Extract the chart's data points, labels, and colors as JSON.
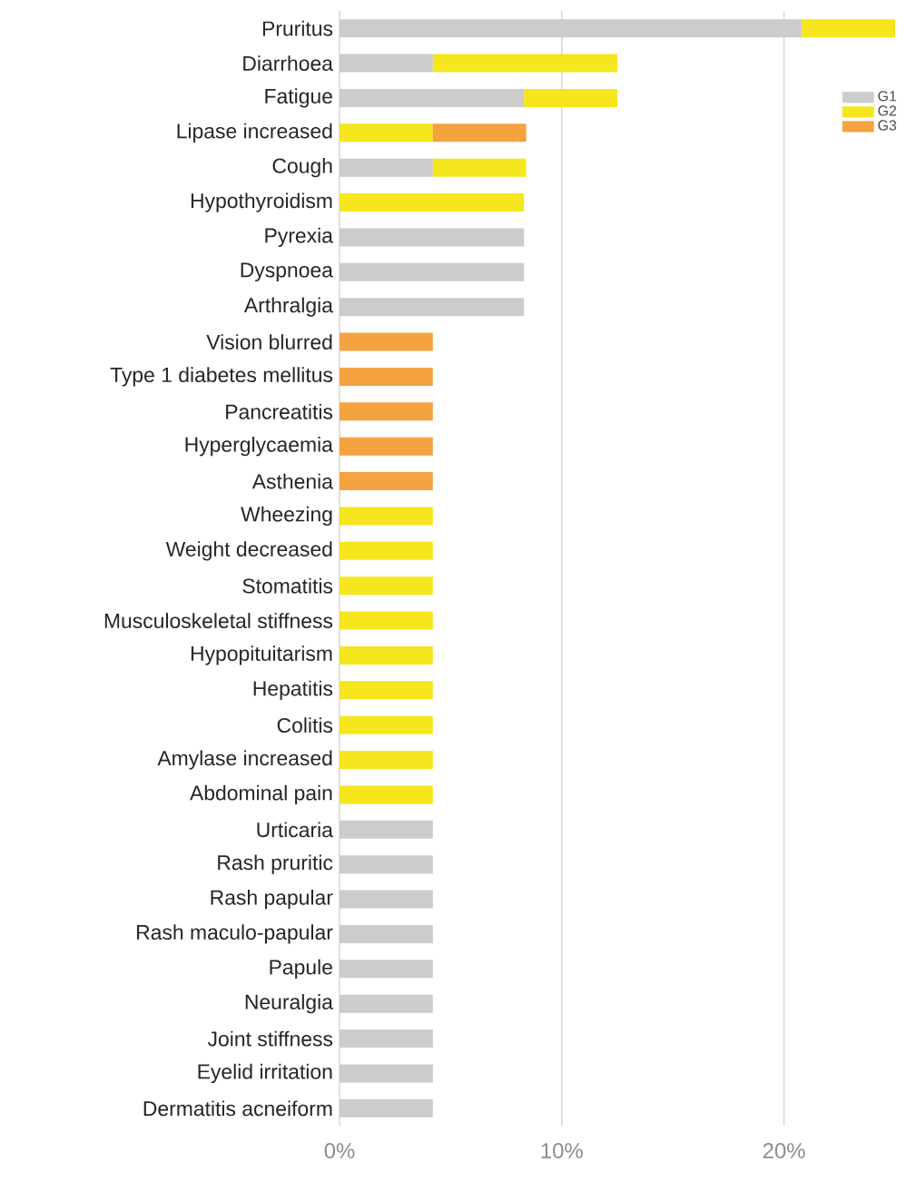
{
  "chart_data": {
    "type": "bar",
    "orientation": "horizontal",
    "stacked": true,
    "categories": [
      "Pruritus",
      "Diarrhoea",
      "Fatigue",
      "Lipase increased",
      "Cough",
      "Hypothyroidism",
      "Pyrexia",
      "Dyspnoea",
      "Arthralgia",
      "Vision blurred",
      "Type 1 diabetes mellitus",
      "Pancreatitis",
      "Hyperglycaemia",
      "Asthenia",
      "Wheezing",
      "Weight decreased",
      "Stomatitis",
      "Musculoskeletal stiffness",
      "Hypopituitarism",
      "Hepatitis",
      "Colitis",
      "Amylase increased",
      "Abdominal pain",
      "Urticaria",
      "Rash pruritic",
      "Rash papular",
      "Rash maculo-papular",
      "Papule",
      "Neuralgia",
      "Joint stiffness",
      "Eyelid irritation",
      "Dermatitis acneiform"
    ],
    "series": [
      {
        "name": "G1",
        "color": "#cccccc",
        "values": [
          20.8,
          4.2,
          8.3,
          null,
          4.2,
          null,
          8.3,
          8.3,
          8.3,
          null,
          null,
          null,
          null,
          null,
          null,
          null,
          null,
          null,
          null,
          null,
          null,
          null,
          null,
          4.2,
          4.2,
          4.2,
          4.2,
          4.2,
          4.2,
          4.2,
          4.2,
          4.2
        ]
      },
      {
        "name": "G2",
        "color": "#f5e61e",
        "values": [
          4.2,
          8.3,
          4.2,
          4.2,
          4.2,
          8.3,
          null,
          null,
          null,
          null,
          null,
          null,
          null,
          null,
          4.2,
          4.2,
          4.2,
          4.2,
          4.2,
          4.2,
          4.2,
          4.2,
          4.2,
          null,
          null,
          null,
          null,
          null,
          null,
          null,
          null,
          null
        ]
      },
      {
        "name": "G3",
        "color": "#f4a340",
        "values": [
          null,
          null,
          null,
          4.2,
          null,
          null,
          null,
          null,
          null,
          4.2,
          4.2,
          4.2,
          4.2,
          4.2,
          null,
          null,
          null,
          null,
          null,
          null,
          null,
          null,
          null,
          null,
          null,
          null,
          null,
          null,
          null,
          null,
          null,
          null
        ]
      }
    ],
    "xlim": [
      0,
      25
    ],
    "xticks": [
      {
        "value": 0,
        "label": "0%"
      },
      {
        "value": 10,
        "label": "10%"
      },
      {
        "value": 20,
        "label": "20%"
      }
    ],
    "grid": "x",
    "legend": "top right"
  }
}
